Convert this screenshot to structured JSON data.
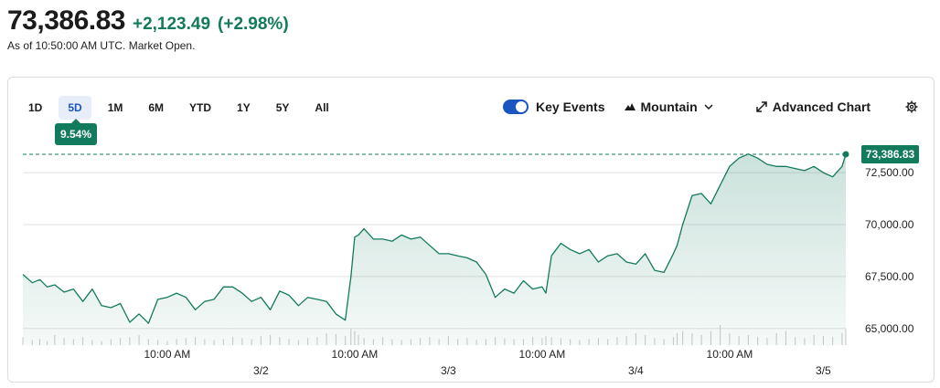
{
  "header": {
    "price": "73,386.83",
    "change": "+2,123.49",
    "change_pct": "(+2.98%)",
    "as_of": "As of 10:50:00 AM UTC. Market Open."
  },
  "ranges": [
    "1D",
    "5D",
    "1M",
    "6M",
    "YTD",
    "1Y",
    "5Y",
    "All"
  ],
  "active_range": "5D",
  "badge": "9.54%",
  "toolbar": {
    "key_events": "Key Events",
    "chart_type": "Mountain",
    "advanced": "Advanced Chart"
  },
  "colors": {
    "accent": "#127a5d",
    "active_tab": "#1a55c0"
  },
  "chart_data": {
    "type": "area",
    "current_label": "73,386.83",
    "y_ticks": [
      {
        "value": 65000,
        "label": "65,000.00"
      },
      {
        "value": 67500,
        "label": "67,500.00"
      },
      {
        "value": 70000,
        "label": "70,000.00"
      },
      {
        "value": 72500,
        "label": "72,500.00"
      }
    ],
    "ylim": [
      64200,
      74000
    ],
    "x_ticks": [
      {
        "x": 0.5,
        "label": "10:00 AM"
      },
      {
        "x": 1.0,
        "label": "3/2"
      },
      {
        "x": 1.5,
        "label": "10:00 AM"
      },
      {
        "x": 2.0,
        "label": "3/3"
      },
      {
        "x": 2.5,
        "label": "10:00 AM"
      },
      {
        "x": 3.0,
        "label": "3/4"
      },
      {
        "x": 3.5,
        "label": "10:00 AM"
      },
      {
        "x": 4.0,
        "label": "3/5"
      }
    ],
    "xlim": [
      -0.27,
      4.12
    ],
    "x": [
      -0.27,
      -0.22,
      -0.18,
      -0.14,
      -0.1,
      -0.05,
      0.0,
      0.05,
      0.1,
      0.15,
      0.2,
      0.25,
      0.3,
      0.35,
      0.4,
      0.45,
      0.5,
      0.55,
      0.6,
      0.65,
      0.7,
      0.75,
      0.8,
      0.85,
      0.9,
      0.95,
      1.0,
      1.05,
      1.1,
      1.15,
      1.2,
      1.25,
      1.3,
      1.35,
      1.4,
      1.45,
      1.48,
      1.5,
      1.52,
      1.55,
      1.6,
      1.65,
      1.7,
      1.75,
      1.8,
      1.85,
      1.9,
      1.95,
      2.0,
      2.05,
      2.1,
      2.15,
      2.2,
      2.25,
      2.3,
      2.35,
      2.4,
      2.45,
      2.5,
      2.52,
      2.55,
      2.6,
      2.65,
      2.7,
      2.75,
      2.8,
      2.85,
      2.9,
      2.95,
      3.0,
      3.05,
      3.1,
      3.15,
      3.2,
      3.22,
      3.25,
      3.3,
      3.35,
      3.4,
      3.45,
      3.5,
      3.55,
      3.6,
      3.65,
      3.7,
      3.75,
      3.8,
      3.85,
      3.9,
      3.95,
      4.0,
      4.05,
      4.1,
      4.12
    ],
    "values": [
      67600,
      67200,
      67350,
      67000,
      67100,
      66750,
      66900,
      66300,
      66900,
      66100,
      66000,
      66200,
      65300,
      65700,
      65250,
      66400,
      66500,
      66700,
      66500,
      65900,
      66300,
      66400,
      67000,
      67000,
      66700,
      66300,
      66500,
      65900,
      66800,
      66600,
      66100,
      66500,
      66400,
      66300,
      65700,
      65400,
      67500,
      69400,
      69500,
      69800,
      69300,
      69300,
      69200,
      69500,
      69300,
      69400,
      69000,
      68600,
      68600,
      68500,
      68400,
      68200,
      67600,
      66500,
      66900,
      66700,
      67300,
      66900,
      67000,
      66700,
      68500,
      69100,
      68800,
      68600,
      68800,
      68200,
      68500,
      68600,
      68200,
      68100,
      68600,
      67800,
      67700,
      68600,
      69000,
      70000,
      71400,
      71500,
      71000,
      71900,
      72800,
      73200,
      73400,
      73200,
      72900,
      72800,
      72800,
      72700,
      72600,
      72800,
      72500,
      72300,
      72800,
      73386.83
    ],
    "volume": [
      0.4,
      0.25,
      0.3,
      0.2,
      0.5,
      0.35,
      0.3,
      0.4,
      0.25,
      0.2,
      0.3,
      0.35,
      0.4,
      0.5,
      0.3,
      0.25,
      0.2,
      0.3,
      0.35,
      0.4,
      0.3,
      0.25,
      0.3,
      0.4,
      0.35,
      0.3,
      0.45,
      0.5,
      0.4,
      0.3,
      0.25,
      0.35,
      0.4,
      0.6,
      0.55,
      0.45,
      0.8,
      0.7,
      0.5,
      0.35,
      0.3,
      0.4,
      0.3,
      0.25,
      0.3,
      0.35,
      0.4,
      0.3,
      0.45,
      0.3,
      0.35,
      0.25,
      0.3,
      0.4,
      0.35,
      0.3,
      0.3,
      0.4,
      0.35,
      0.45,
      0.4,
      0.35,
      0.3,
      0.25,
      0.3,
      0.35,
      0.3,
      0.4,
      0.45,
      0.6,
      0.5,
      0.35,
      0.3,
      0.4,
      0.6,
      0.7,
      0.6,
      0.5,
      0.7,
      1.0,
      0.6,
      0.45,
      0.5,
      0.4,
      0.35,
      0.6,
      0.7,
      0.4,
      0.35,
      0.5,
      0.45,
      0.4,
      0.6,
      0.8
    ]
  }
}
